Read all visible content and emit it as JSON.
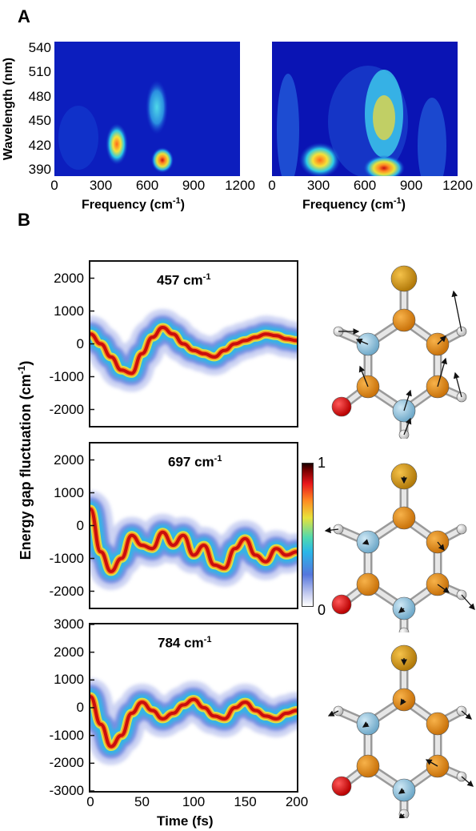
{
  "panel_a_label": "A",
  "panel_b_label": "B",
  "chart_data": [
    {
      "type": "heatmap",
      "panel": "A-left",
      "xlabel": "Frequency (cm",
      "xlabel_sup": "-1",
      "xlabel_end": ")",
      "ylabel": "Wavelength (nm)",
      "x_ticks": [
        "0",
        "300",
        "600",
        "900",
        "1200"
      ],
      "y_ticks": [
        "540",
        "510",
        "480",
        "450",
        "420",
        "390"
      ],
      "xlim": [
        0,
        1200
      ],
      "ylim": [
        375,
        550
      ],
      "peaks": [
        {
          "x": 400,
          "y": 410,
          "intensity": 0.75
        },
        {
          "x": 620,
          "y": 455,
          "intensity": 0.55
        },
        {
          "x": 700,
          "y": 380,
          "intensity": 1.0
        }
      ]
    },
    {
      "type": "heatmap",
      "panel": "A-right",
      "xlabel": "Frequency (cm",
      "xlabel_sup": "-1",
      "xlabel_end": ")",
      "x_ticks": [
        "0",
        "300",
        "600",
        "900",
        "1200"
      ],
      "xlim": [
        0,
        1200
      ],
      "ylim": [
        375,
        550
      ],
      "peaks": [
        {
          "x": 300,
          "y": 390,
          "intensity": 0.7
        },
        {
          "x": 700,
          "y": 445,
          "intensity": 0.6
        },
        {
          "x": 700,
          "y": 382,
          "intensity": 1.0
        }
      ]
    },
    {
      "type": "heatmap",
      "panel": "B-1",
      "title": "457 cm",
      "title_sup": "-1",
      "xlim": [
        0,
        200
      ],
      "ylim": [
        -2500,
        2500
      ],
      "y_ticks": [
        "2000",
        "1000",
        "0",
        "-1000",
        "-2000"
      ],
      "x": [
        0,
        10,
        20,
        30,
        40,
        50,
        60,
        70,
        80,
        90,
        100,
        110,
        120,
        130,
        140,
        150,
        160,
        170,
        180,
        190,
        200
      ],
      "values": [
        300,
        0,
        -400,
        -800,
        -900,
        -300,
        200,
        500,
        300,
        0,
        -200,
        -300,
        -400,
        -200,
        0,
        100,
        200,
        300,
        250,
        150,
        100
      ]
    },
    {
      "type": "heatmap",
      "panel": "B-2",
      "title": "697 cm",
      "title_sup": "-1",
      "xlim": [
        0,
        200
      ],
      "ylim": [
        -2500,
        2500
      ],
      "y_ticks": [
        "2000",
        "1000",
        "0",
        "-1000",
        "-2000"
      ],
      "x": [
        0,
        10,
        20,
        30,
        40,
        50,
        60,
        70,
        80,
        90,
        100,
        110,
        120,
        130,
        140,
        150,
        160,
        170,
        180,
        190,
        200
      ],
      "values": [
        500,
        -800,
        -1400,
        -1000,
        -300,
        -600,
        -700,
        -200,
        -600,
        -300,
        -900,
        -600,
        -1200,
        -1300,
        -700,
        -400,
        -900,
        -1100,
        -700,
        -900,
        -800
      ],
      "colorbar": {
        "max_label": "1",
        "min_label": "0"
      }
    },
    {
      "type": "heatmap",
      "panel": "B-3",
      "title": "784 cm",
      "title_sup": "-1",
      "xlabel": "Time (fs)",
      "xlim": [
        0,
        200
      ],
      "ylim": [
        -3000,
        3000
      ],
      "y_ticks": [
        "3000",
        "2000",
        "1000",
        "0",
        "-1000",
        "-2000",
        "-3000"
      ],
      "x_ticks": [
        "0",
        "50",
        "100",
        "150",
        "200"
      ],
      "x": [
        0,
        10,
        20,
        30,
        40,
        50,
        60,
        70,
        80,
        90,
        100,
        110,
        120,
        130,
        140,
        150,
        160,
        170,
        180,
        190,
        200
      ],
      "values": [
        400,
        -600,
        -1400,
        -1000,
        -200,
        200,
        -100,
        -400,
        -200,
        100,
        300,
        0,
        -300,
        -400,
        0,
        200,
        -100,
        -300,
        -400,
        -200,
        -100
      ]
    }
  ],
  "shared_ylabel": "Energy gap fluctuation (cm",
  "shared_ylabel_sup": "-1",
  "shared_ylabel_end": ")"
}
